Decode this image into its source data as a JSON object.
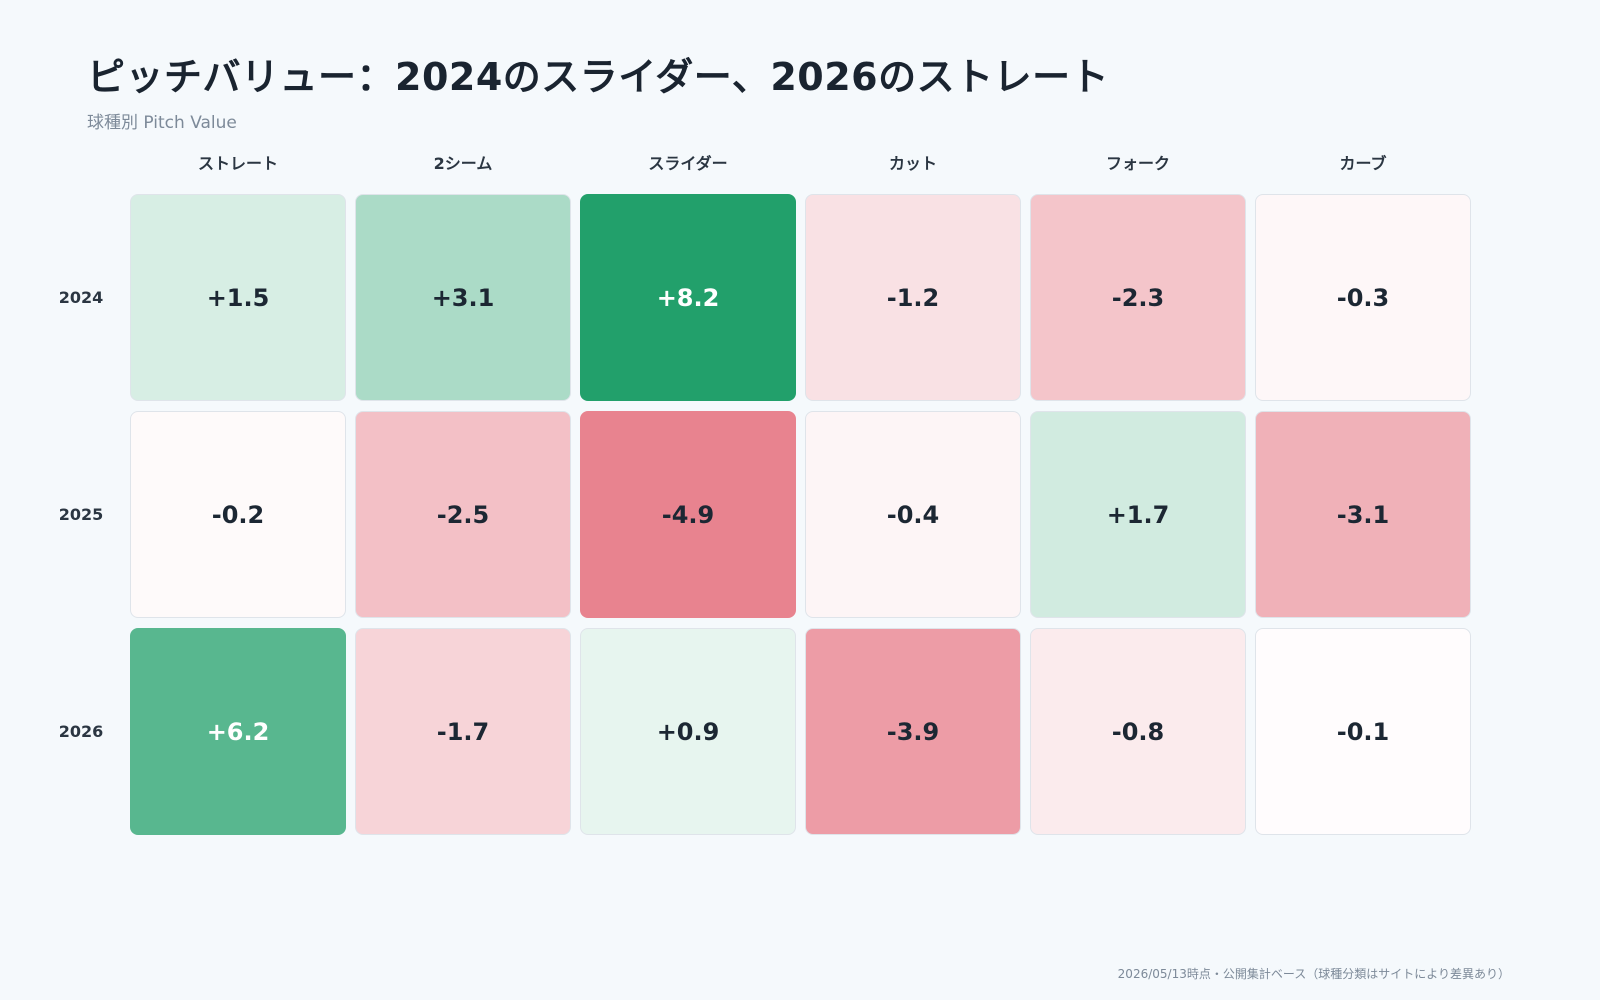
{
  "title": "ピッチバリュー：2024のスライダー、2026のストレート",
  "subtitle": "球種別 Pitch Value",
  "footnote": "2026/05/13時点・公開集計ベース（球種分類はサイトにより差異あり）",
  "colors": {
    "background": "#f5f9fc",
    "positive_max": "#22a06b",
    "negative_max": "#e8838f",
    "neutral": "#ffffff",
    "text_dark": "#1c2733",
    "text_light": "#ffffff"
  },
  "chart_data": {
    "type": "heatmap",
    "title": "ピッチバリュー：2024のスライダー、2026のストレート",
    "subtitle": "球種別 Pitch Value",
    "columns": [
      "ストレート",
      "2シーム",
      "スライダー",
      "カット",
      "フォーク",
      "カーブ"
    ],
    "rows": [
      "2024",
      "2025",
      "2026"
    ],
    "values": [
      [
        1.5,
        3.1,
        8.2,
        -1.2,
        -2.3,
        -0.3
      ],
      [
        -0.2,
        -2.5,
        -4.9,
        -0.4,
        1.7,
        -3.1
      ],
      [
        6.2,
        -1.7,
        0.9,
        -3.9,
        -0.8,
        -0.1
      ]
    ],
    "labels": [
      [
        "+1.5",
        "+3.1",
        "+8.2",
        "-1.2",
        "-2.3",
        "-0.3"
      ],
      [
        "-0.2",
        "-2.5",
        "-4.9",
        "-0.4",
        "+1.7",
        "-3.1"
      ],
      [
        "+6.2",
        "-1.7",
        "+0.9",
        "-3.9",
        "-0.8",
        "-0.1"
      ]
    ],
    "color_scale": {
      "positive_max_value": 8.2,
      "negative_max_value": -4.9
    }
  }
}
